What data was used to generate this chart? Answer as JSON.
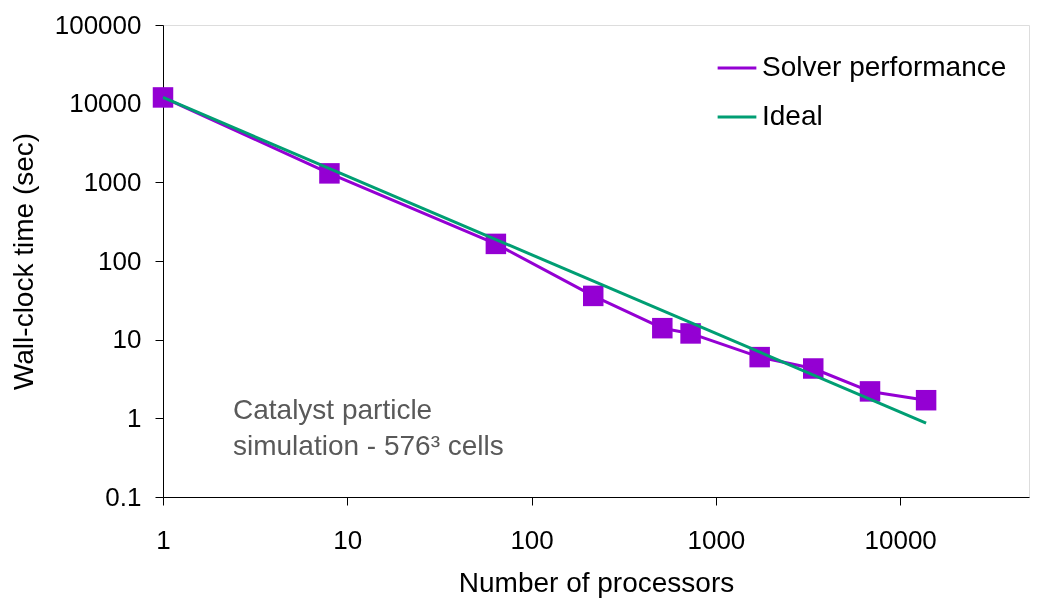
{
  "chart_data": {
    "type": "line",
    "xlabel": "Number of processors",
    "ylabel": "Wall-clock time (sec)",
    "series": [
      {
        "name": "Solver performance",
        "color": "#9400d3",
        "x": [
          1,
          8,
          64,
          216,
          512,
          729,
          1728,
          3375,
          6859,
          13824
        ],
        "values": [
          12000,
          1300,
          165,
          36,
          14,
          12,
          6,
          4.3,
          2.2,
          1.7
        ],
        "marker": "square"
      },
      {
        "name": "Ideal",
        "color": "#009e73",
        "x": [
          1,
          13824
        ],
        "values": [
          12000,
          0.87
        ],
        "marker": "none"
      }
    ],
    "log": "xy",
    "xlim": [
      1,
      50000
    ],
    "ylim": [
      0.1,
      100000
    ],
    "xticks": [
      1,
      10,
      100,
      1000,
      10000
    ],
    "yticks": [
      0.1,
      1,
      10,
      100,
      1000,
      10000,
      100000
    ],
    "grid": false,
    "legend": "top right",
    "annotations": [
      "Catalyst particle\nsimulation - 576³ cells"
    ]
  }
}
